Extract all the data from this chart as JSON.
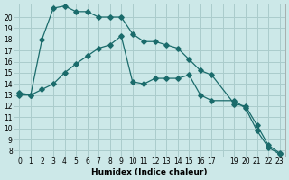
{
  "xlabel": "Humidex (Indice chaleur)",
  "bg_color": "#cce8e8",
  "grid_color": "#aacccc",
  "line_color": "#1a6b6b",
  "line1_x": [
    0,
    1,
    2,
    3,
    4,
    5,
    6,
    7,
    8,
    9,
    10,
    11,
    12,
    13,
    14,
    15,
    16,
    17,
    19,
    20,
    21,
    22,
    23
  ],
  "line1_y": [
    13.0,
    13.0,
    18.0,
    20.8,
    21.0,
    20.5,
    20.5,
    20.0,
    20.0,
    20.0,
    18.5,
    17.8,
    17.8,
    17.5,
    17.2,
    16.2,
    15.2,
    14.8,
    12.2,
    12.0,
    10.3,
    8.5,
    7.8
  ],
  "line2_x": [
    0,
    1,
    2,
    3,
    4,
    5,
    6,
    7,
    8,
    9,
    10,
    11,
    12,
    13,
    14,
    15,
    16,
    17,
    19,
    20,
    21,
    22,
    23
  ],
  "line2_y": [
    13.2,
    13.0,
    13.5,
    14.0,
    15.0,
    15.8,
    16.5,
    17.2,
    17.5,
    18.3,
    14.2,
    14.0,
    14.5,
    14.5,
    14.5,
    14.8,
    13.0,
    12.5,
    12.5,
    11.8,
    9.8,
    8.3,
    7.7
  ],
  "ylim_min": 7.5,
  "ylim_max": 21.2,
  "xlim_min": -0.5,
  "xlim_max": 23.5,
  "yticks": [
    8,
    9,
    10,
    11,
    12,
    13,
    14,
    15,
    16,
    17,
    18,
    19,
    20
  ],
  "xtick_pos": [
    0,
    1,
    2,
    3,
    4,
    5,
    6,
    7,
    8,
    9,
    10,
    11,
    12,
    13,
    14,
    15,
    16,
    17,
    18,
    19,
    20,
    21,
    22,
    23
  ],
  "xtick_labels": [
    "0",
    "1",
    "2",
    "3",
    "4",
    "5",
    "6",
    "7",
    "8",
    "9",
    "10",
    "11",
    "12",
    "13",
    "14",
    "15",
    "16",
    "17",
    "",
    "19",
    "20",
    "21",
    "22",
    "23"
  ]
}
